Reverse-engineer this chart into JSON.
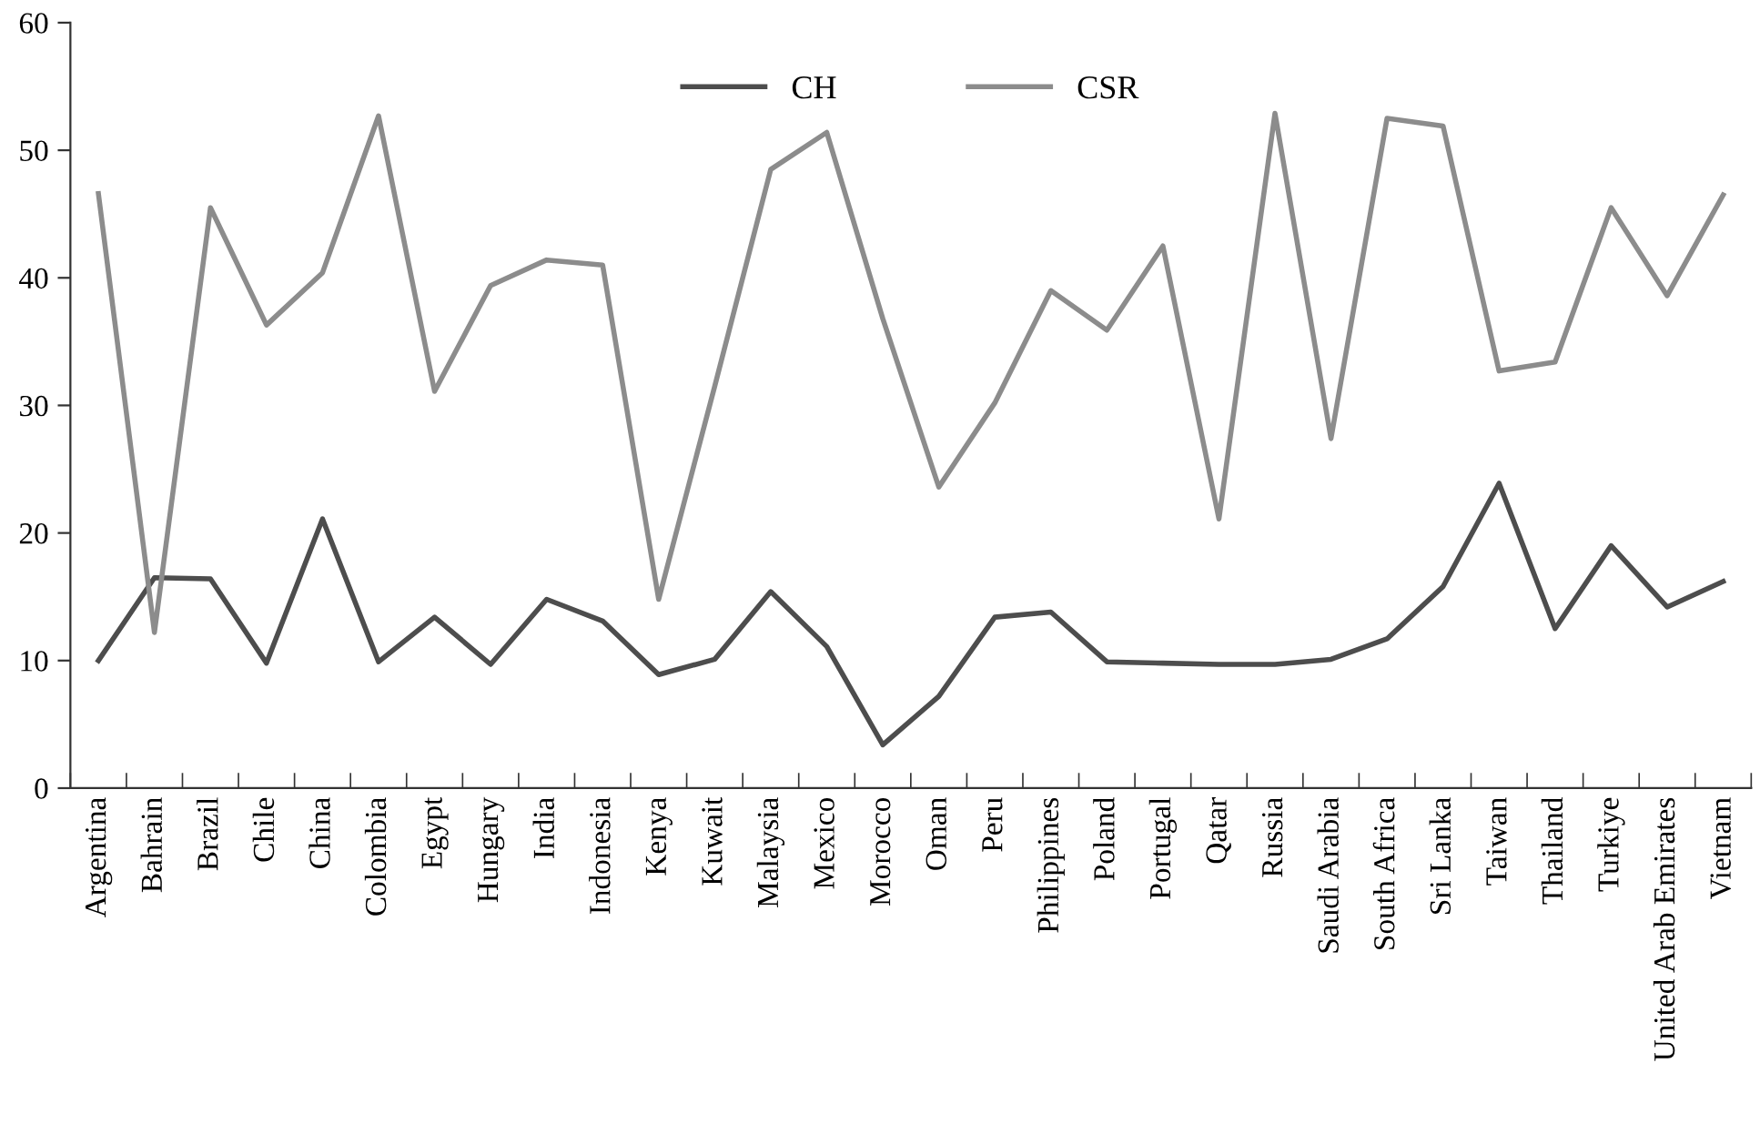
{
  "chart_data": {
    "type": "line",
    "categories": [
      "Argentina",
      "Bahrain",
      "Brazil",
      "Chile",
      "China",
      "Colombia",
      "Egypt",
      "Hungary",
      "India",
      "Indonesia",
      "Kenya",
      "Kuwait",
      "Malaysia",
      "Mexico",
      "Morocco",
      "Oman",
      "Peru",
      "Philippines",
      "Poland",
      "Portugal",
      "Qatar",
      "Russia",
      "Saudi Arabia",
      "South Africa",
      "Sri Lanka",
      "Taiwan",
      "Thailand",
      "Turkiye",
      "United Arab Emirates",
      "Vietnam"
    ],
    "series": [
      {
        "name": "CH",
        "color": "#4d4d4d",
        "values": [
          10.0,
          16.5,
          16.4,
          9.8,
          21.1,
          9.9,
          13.4,
          9.7,
          14.8,
          13.1,
          8.9,
          10.1,
          15.4,
          11.1,
          3.4,
          7.2,
          13.4,
          13.8,
          9.9,
          9.8,
          9.7,
          9.7,
          10.1,
          11.7,
          15.8,
          23.9,
          12.5,
          19.0,
          14.2,
          16.2
        ]
      },
      {
        "name": "CSR",
        "color": "#8c8c8c",
        "values": [
          46.6,
          12.2,
          45.5,
          36.3,
          40.4,
          52.7,
          31.1,
          39.4,
          41.4,
          41.0,
          14.8,
          31.5,
          48.5,
          51.4,
          36.8,
          23.6,
          30.2,
          39.0,
          35.9,
          42.5,
          21.1,
          52.9,
          27.4,
          52.5,
          51.9,
          32.7,
          33.4,
          45.5,
          38.6,
          46.5
        ]
      }
    ],
    "ylim": [
      0,
      60
    ],
    "yticks": [
      0,
      10,
      20,
      30,
      40,
      50,
      60
    ],
    "grid": false,
    "legend": "top",
    "marker": "none",
    "line_style": "solid"
  }
}
